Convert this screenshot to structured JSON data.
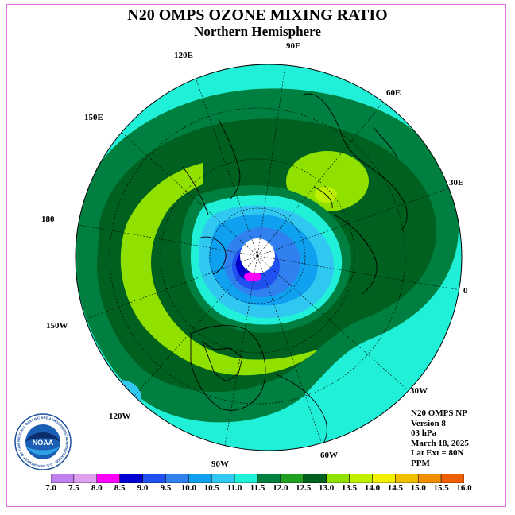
{
  "title": "N20 OMPS OZONE MIXING RATIO",
  "subtitle": "Northern Hemisphere",
  "longitude_labels": [
    "90E",
    "60E",
    "30E",
    "0",
    "30W",
    "60W",
    "90W",
    "120W",
    "150W",
    "180",
    "150E",
    "120E"
  ],
  "info": {
    "line1": "N20 OMPS NP",
    "line2": "Version 8",
    "line3": "03 hPa",
    "line4": "March 18, 2025",
    "line5": "Lat Ext = 80N",
    "line6": "PPM"
  },
  "logo": {
    "text": "NOAA",
    "ring_text": "NATIONAL OCEANIC AND ATMOSPHERIC ADMINISTRATION · U.S. DEPARTMENT OF COMMERCE"
  },
  "colorbar": {
    "ticks": [
      "7.0",
      "7.5",
      "8.0",
      "8.5",
      "9.0",
      "9.5",
      "10.0",
      "10.5",
      "11.0",
      "11.5",
      "12.0",
      "12.5",
      "13.0",
      "13.5",
      "14.0",
      "14.5",
      "15.0",
      "15.5",
      "16.0"
    ],
    "colors": [
      "#c080f0",
      "#e0a0f0",
      "#ff00ff",
      "#0000d0",
      "#2050f0",
      "#3080f0",
      "#10a0f0",
      "#30c8f0",
      "#20f0d8",
      "#008040",
      "#20a020",
      "#006020",
      "#90e000",
      "#c0f000",
      "#f0f000",
      "#f0c000",
      "#f09000",
      "#f06000",
      "#f00000",
      "#a06040"
    ]
  },
  "chart_data": {
    "type": "polar-stereographic contour map",
    "quantity": "ozone mixing ratio",
    "unit": "PPM",
    "pressure_level": "03 hPa",
    "date": "March 18, 2025",
    "lat_extent": "80N",
    "levels": [
      7.0,
      7.5,
      8.0,
      8.5,
      9.0,
      9.5,
      10.0,
      10.5,
      11.0,
      11.5,
      12.0,
      12.5,
      13.0,
      13.5,
      14.0,
      14.5,
      15.0,
      15.5,
      16.0
    ]
  }
}
